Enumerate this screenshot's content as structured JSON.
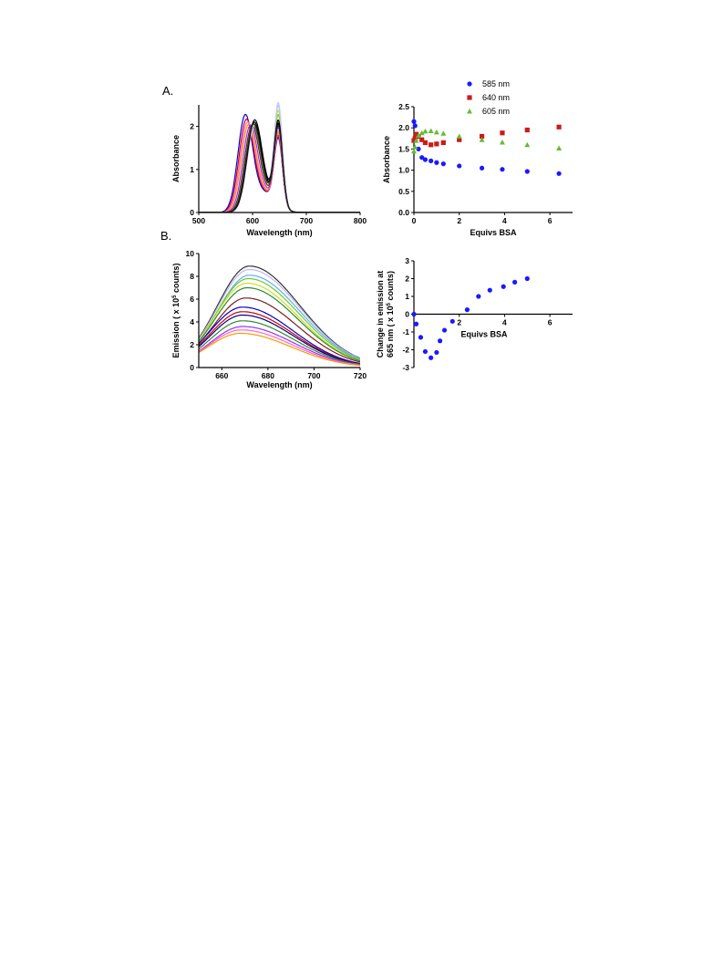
{
  "panels": {
    "a_label": "A.",
    "b_label": "B."
  },
  "chart_data": [
    {
      "id": "absorbance_spectra",
      "type": "line",
      "xlabel": "Wavelength (nm)",
      "ylabel": "Absorbance",
      "xlim": [
        500,
        800
      ],
      "ylim": [
        0,
        2.5
      ],
      "xticks": [
        "500",
        "600",
        "700",
        "800"
      ],
      "yticks": [
        "0",
        "1",
        "2"
      ],
      "xtick_values": [
        500,
        600,
        700,
        800
      ],
      "ytick_values": [
        0,
        1,
        2
      ],
      "series": [
        {
          "color": "#0000ee",
          "peaks": [
            {
              "x": 586,
              "h": 2.15,
              "w": 19
            },
            {
              "x": 648,
              "h": 1.55,
              "w": 11
            },
            {
              "x": 620,
              "h": 0.45,
              "w": 30
            }
          ]
        },
        {
          "color": "#d00000",
          "peaks": [
            {
              "x": 588,
              "h": 2.02,
              "w": 19
            },
            {
              "x": 648,
              "h": 1.6,
              "w": 11
            },
            {
              "x": 620,
              "h": 0.45,
              "w": 30
            }
          ]
        },
        {
          "color": "#ff66cc",
          "peaks": [
            {
              "x": 590,
              "h": 1.93,
              "w": 19
            },
            {
              "x": 648,
              "h": 1.65,
              "w": 11
            },
            {
              "x": 620,
              "h": 0.45,
              "w": 30
            }
          ]
        },
        {
          "color": "#ff9900",
          "peaks": [
            {
              "x": 592,
              "h": 1.86,
              "w": 19
            },
            {
              "x": 648,
              "h": 1.7,
              "w": 11
            },
            {
              "x": 620,
              "h": 0.45,
              "w": 30
            }
          ]
        },
        {
          "color": "#9b30ff",
          "peaks": [
            {
              "x": 595,
              "h": 1.8,
              "w": 19
            },
            {
              "x": 648,
              "h": 1.78,
              "w": 11
            },
            {
              "x": 620,
              "h": 0.45,
              "w": 30
            }
          ]
        },
        {
          "color": "#7a1f1f",
          "peaks": [
            {
              "x": 598,
              "h": 1.76,
              "w": 19
            },
            {
              "x": 648,
              "h": 1.85,
              "w": 11
            },
            {
              "x": 620,
              "h": 0.45,
              "w": 30
            }
          ]
        },
        {
          "color": "#2e8b2e",
          "peaks": [
            {
              "x": 600,
              "h": 1.74,
              "w": 19
            },
            {
              "x": 648,
              "h": 1.95,
              "w": 11
            },
            {
              "x": 620,
              "h": 0.45,
              "w": 30
            }
          ]
        },
        {
          "color": "#66cc33",
          "peaks": [
            {
              "x": 601,
              "h": 1.72,
              "w": 19
            },
            {
              "x": 648,
              "h": 2.08,
              "w": 11
            },
            {
              "x": 620,
              "h": 0.45,
              "w": 30
            }
          ]
        },
        {
          "color": "#ccdd22",
          "peaks": [
            {
              "x": 602,
              "h": 1.71,
              "w": 19
            },
            {
              "x": 648,
              "h": 2.18,
              "w": 11
            },
            {
              "x": 620,
              "h": 0.45,
              "w": 30
            }
          ]
        },
        {
          "color": "#99bbff",
          "peaks": [
            {
              "x": 603,
              "h": 1.7,
              "w": 19
            },
            {
              "x": 648,
              "h": 2.3,
              "w": 11
            },
            {
              "x": 620,
              "h": 0.45,
              "w": 30
            }
          ]
        },
        {
          "color": "#c8c8ff",
          "peaks": [
            {
              "x": 603,
              "h": 1.7,
              "w": 19
            },
            {
              "x": 648,
              "h": 2.36,
              "w": 11
            },
            {
              "x": 620,
              "h": 0.45,
              "w": 30
            }
          ]
        },
        {
          "color": "#000000",
          "peaks": [
            {
              "x": 603,
              "h": 1.82,
              "w": 19
            },
            {
              "x": 648,
              "h": 1.95,
              "w": 11
            },
            {
              "x": 620,
              "h": 0.45,
              "w": 30
            }
          ]
        },
        {
          "color": "#000000",
          "peaks": [
            {
              "x": 602,
              "h": 1.78,
              "w": 19
            },
            {
              "x": 648,
              "h": 1.88,
              "w": 11
            },
            {
              "x": 620,
              "h": 0.45,
              "w": 30
            }
          ]
        },
        {
          "color": "#222222",
          "peaks": [
            {
              "x": 601,
              "h": 1.75,
              "w": 19
            },
            {
              "x": 648,
              "h": 1.82,
              "w": 11
            },
            {
              "x": 620,
              "h": 0.45,
              "w": 30
            }
          ]
        }
      ]
    },
    {
      "id": "absorbance_vs_bsa",
      "type": "scatter",
      "xlabel": "Equivs BSA",
      "ylabel": "Absorbance",
      "xlim": [
        0,
        7
      ],
      "ylim": [
        0,
        2.5
      ],
      "xticks": [
        "0",
        "2",
        "4",
        "6"
      ],
      "yticks": [
        "0.0",
        "0.5",
        "1.0",
        "1.5",
        "2.0",
        "2.5"
      ],
      "xtick_values": [
        0,
        2,
        4,
        6
      ],
      "ytick_values": [
        0,
        0.5,
        1,
        1.5,
        2,
        2.5
      ],
      "legend_position": "top-right",
      "series": [
        {
          "name": "585 nm",
          "marker": "circle",
          "color": "#1a1aff",
          "x": [
            0,
            0.05,
            0.1,
            0.2,
            0.35,
            0.5,
            0.75,
            1.0,
            1.3,
            2.0,
            3.0,
            3.9,
            5.0,
            6.4
          ],
          "y": [
            2.15,
            2.05,
            1.8,
            1.5,
            1.3,
            1.25,
            1.22,
            1.18,
            1.15,
            1.1,
            1.05,
            1.02,
            0.97,
            0.92
          ]
        },
        {
          "name": "640 nm",
          "marker": "square",
          "color": "#cc1a1a",
          "x": [
            0,
            0.05,
            0.1,
            0.2,
            0.35,
            0.5,
            0.75,
            1.0,
            1.3,
            2.0,
            3.0,
            3.9,
            5.0,
            6.4
          ],
          "y": [
            1.7,
            1.75,
            1.85,
            1.8,
            1.72,
            1.65,
            1.6,
            1.62,
            1.65,
            1.72,
            1.8,
            1.88,
            1.95,
            2.02
          ]
        },
        {
          "name": "605 nm",
          "marker": "triangle",
          "color": "#66bb33",
          "x": [
            0,
            0.05,
            0.1,
            0.2,
            0.35,
            0.5,
            0.75,
            1.0,
            1.3,
            2.0,
            3.0,
            3.9,
            5.0,
            6.4
          ],
          "y": [
            1.45,
            1.55,
            1.7,
            1.82,
            1.88,
            1.92,
            1.93,
            1.9,
            1.87,
            1.8,
            1.72,
            1.66,
            1.6,
            1.52
          ]
        }
      ]
    },
    {
      "id": "emission_spectra",
      "type": "line",
      "xlabel": "Wavelength (nm)",
      "ylabel_prefix": "Emission ( x 10",
      "ylabel_sup": "5",
      "ylabel_suffix": " counts)",
      "xlim": [
        650,
        720
      ],
      "ylim": [
        0,
        10
      ],
      "xticks": [
        "660",
        "680",
        "700",
        "720"
      ],
      "yticks": [
        "0",
        "2",
        "4",
        "6",
        "8",
        "10"
      ],
      "xtick_values": [
        660,
        680,
        700,
        720
      ],
      "ytick_values": [
        0,
        2,
        4,
        6,
        8,
        10
      ],
      "series": [
        {
          "color": "#333333",
          "peak": 672,
          "h": 8.9
        },
        {
          "color": "#b8b8ee",
          "peak": 672,
          "h": 8.6
        },
        {
          "color": "#66aaff",
          "peak": 672,
          "h": 8.1
        },
        {
          "color": "#66cc33",
          "peak": 671.5,
          "h": 7.8
        },
        {
          "color": "#ccdd22",
          "peak": 671,
          "h": 7.4
        },
        {
          "color": "#2e8b2e",
          "peak": 671,
          "h": 7.0
        },
        {
          "color": "#7a1f1f",
          "peak": 670.5,
          "h": 6.1
        },
        {
          "color": "#0000cc",
          "peak": 669,
          "h": 5.3
        },
        {
          "color": "#d00000",
          "peak": 669,
          "h": 4.9
        },
        {
          "color": "#000080",
          "peak": 669,
          "h": 4.6
        },
        {
          "color": "#2e8b2e",
          "peak": 669,
          "h": 4.1
        },
        {
          "color": "#9b30ff",
          "peak": 669,
          "h": 3.6
        },
        {
          "color": "#ff66cc",
          "peak": 668.5,
          "h": 3.3
        },
        {
          "color": "#ff9900",
          "peak": 668,
          "h": 3.0
        }
      ]
    },
    {
      "id": "emission_change_vs_bsa",
      "type": "scatter",
      "xlabel": "Equivs BSA",
      "ylabel_line1": "Change in emission at",
      "ylabel_line2_prefix": "665 nm ( x 10",
      "ylabel_line2_sup": "5",
      "ylabel_line2_suffix": " counts)",
      "xlim": [
        0,
        7
      ],
      "ylim": [
        -3,
        3
      ],
      "xticks": [
        "2",
        "4",
        "6"
      ],
      "yticks": [
        "-3",
        "-2",
        "-1",
        "0",
        "1",
        "2",
        "3"
      ],
      "xtick_values": [
        2,
        4,
        6
      ],
      "ytick_values": [
        -3,
        -2,
        -1,
        0,
        1,
        2,
        3
      ],
      "series": [
        {
          "marker": "circle",
          "color": "#1a1aff",
          "x": [
            0,
            0.1,
            0.3,
            0.5,
            0.75,
            1.0,
            1.15,
            1.35,
            1.7,
            2.35,
            2.85,
            3.35,
            3.95,
            4.45,
            5.0
          ],
          "y": [
            0,
            -0.55,
            -1.3,
            -2.1,
            -2.45,
            -2.15,
            -1.5,
            -0.9,
            -0.4,
            0.25,
            1.0,
            1.35,
            1.55,
            1.8,
            2.0
          ]
        }
      ]
    }
  ]
}
